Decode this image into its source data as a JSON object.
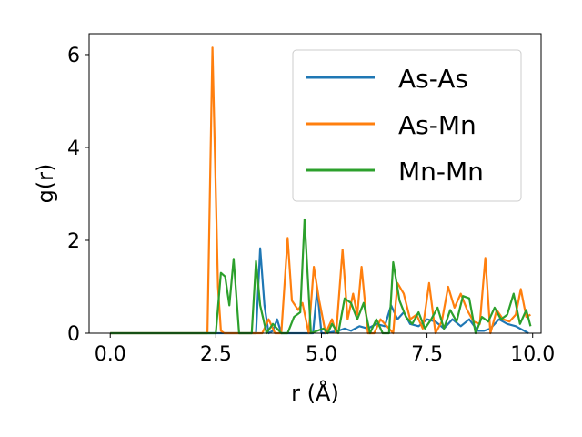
{
  "chart_data": {
    "type": "line",
    "xlabel": "r (Å)",
    "ylabel": "g(r)",
    "xlim": [
      -0.5,
      10.2
    ],
    "ylim": [
      0,
      6.45
    ],
    "xticks": [
      0.0,
      2.5,
      5.0,
      7.5,
      10.0
    ],
    "xtick_labels": [
      "0.0",
      "2.5",
      "5.0",
      "7.5",
      "10.0"
    ],
    "yticks": [
      0,
      2,
      4,
      6
    ],
    "ytick_labels": [
      "0",
      "2",
      "4",
      "6"
    ],
    "grid": false,
    "legend_position": "top-right",
    "series": [
      {
        "name": "As-As",
        "color": "#1f77b4",
        "x": [
          0,
          3.3,
          3.45,
          3.55,
          3.65,
          3.75,
          3.85,
          3.95,
          4.05,
          4.15,
          4.25,
          4.7,
          4.8,
          4.9,
          5.0,
          5.1,
          5.4,
          5.55,
          5.7,
          5.9,
          6.1,
          6.3,
          6.5,
          6.65,
          6.8,
          6.95,
          7.1,
          7.3,
          7.5,
          7.7,
          7.9,
          8.1,
          8.3,
          8.5,
          8.7,
          8.85,
          9.0,
          9.2,
          9.4,
          9.6,
          9.8,
          9.9
        ],
        "y": [
          0,
          0,
          0.0,
          1.83,
          0.6,
          0.0,
          0.05,
          0.3,
          0.0,
          0.0,
          0.0,
          0.0,
          0.0,
          0.95,
          0.0,
          0.0,
          0.05,
          0.1,
          0.05,
          0.15,
          0.1,
          0.2,
          0.15,
          0.6,
          0.3,
          0.45,
          0.2,
          0.15,
          0.3,
          0.25,
          0.1,
          0.3,
          0.15,
          0.3,
          0.05,
          0.05,
          0.1,
          0.3,
          0.2,
          0.15,
          0.05,
          0.0
        ]
      },
      {
        "name": "As-Mn",
        "color": "#ff7f0e",
        "x": [
          0,
          2.3,
          2.42,
          2.55,
          2.62,
          2.7,
          2.8,
          3.3,
          3.45,
          3.6,
          3.75,
          3.9,
          4.05,
          4.2,
          4.3,
          4.45,
          4.55,
          4.7,
          4.82,
          4.95,
          5.1,
          5.25,
          5.35,
          5.5,
          5.62,
          5.75,
          5.85,
          5.95,
          6.1,
          6.25,
          6.4,
          6.55,
          6.7,
          6.8,
          6.95,
          7.1,
          7.25,
          7.4,
          7.55,
          7.7,
          7.85,
          8.0,
          8.15,
          8.3,
          8.45,
          8.6,
          8.75,
          8.88,
          9.0,
          9.15,
          9.3,
          9.45,
          9.6,
          9.72,
          9.85,
          9.95
        ],
        "y": [
          0,
          0,
          6.15,
          1.0,
          0.05,
          0.0,
          0.0,
          0.0,
          0.0,
          0.0,
          0.3,
          0.0,
          0.0,
          2.05,
          0.7,
          0.5,
          0.65,
          0.0,
          1.43,
          0.7,
          0.0,
          0.3,
          0.0,
          1.8,
          0.3,
          0.85,
          0.4,
          1.43,
          0.0,
          0.0,
          0.3,
          0.15,
          0.0,
          1.08,
          0.85,
          0.3,
          0.4,
          0.1,
          1.08,
          0.0,
          0.25,
          1.0,
          0.55,
          0.85,
          0.5,
          0.25,
          0.2,
          1.62,
          0.0,
          0.5,
          0.3,
          0.25,
          0.4,
          0.95,
          0.35,
          0.4
        ]
      },
      {
        "name": "Mn-Mn",
        "color": "#2ca02c",
        "x": [
          0,
          2.5,
          2.62,
          2.72,
          2.82,
          2.92,
          3.05,
          3.35,
          3.45,
          3.55,
          3.7,
          3.85,
          4.05,
          4.2,
          4.35,
          4.5,
          4.6,
          4.75,
          4.9,
          5.05,
          5.15,
          5.25,
          5.4,
          5.55,
          5.7,
          5.85,
          6.0,
          6.15,
          6.3,
          6.45,
          6.6,
          6.7,
          6.85,
          7.0,
          7.15,
          7.3,
          7.45,
          7.6,
          7.75,
          7.9,
          8.05,
          8.2,
          8.35,
          8.5,
          8.65,
          8.8,
          8.95,
          9.1,
          9.25,
          9.4,
          9.55,
          9.7,
          9.85,
          9.95
        ],
        "y": [
          0,
          0,
          1.3,
          1.22,
          0.6,
          1.6,
          0.0,
          0.0,
          1.55,
          0.6,
          0.0,
          0.2,
          0.0,
          0.0,
          0.35,
          0.45,
          2.45,
          0.0,
          0.05,
          0.1,
          0.0,
          0.2,
          0.0,
          0.75,
          0.65,
          0.3,
          0.65,
          0.0,
          0.3,
          0.0,
          0.0,
          1.53,
          0.7,
          0.35,
          0.2,
          0.45,
          0.1,
          0.3,
          0.55,
          0.1,
          0.5,
          0.25,
          0.8,
          0.75,
          0.0,
          0.35,
          0.25,
          0.55,
          0.3,
          0.4,
          0.85,
          0.2,
          0.5,
          0.15
        ]
      }
    ]
  }
}
